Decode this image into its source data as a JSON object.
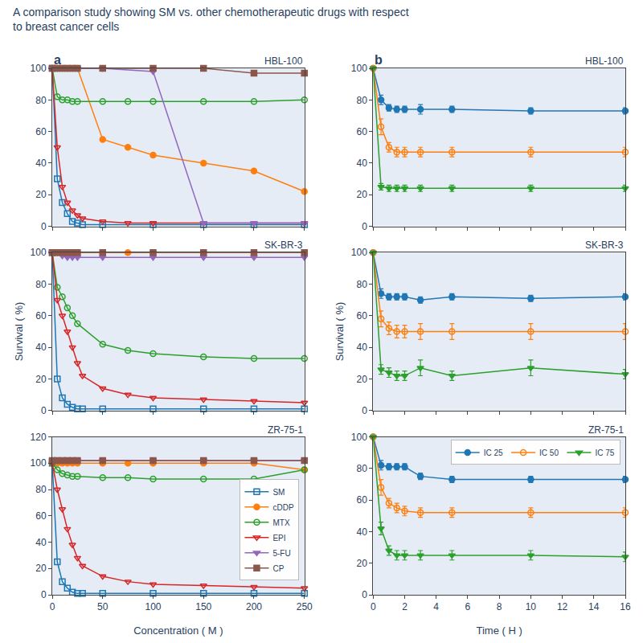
{
  "title": "A comparison study showing SM vs. other chemotherapeutic drugs with respect\nto breast cancer cells",
  "chart_data": [
    {
      "type": "line",
      "title": "a",
      "annotations": [
        "HBL-100"
      ],
      "xlim": [
        0,
        250
      ],
      "xticks": [
        0,
        50,
        100,
        150,
        200,
        250
      ],
      "ylim": [
        0,
        100
      ],
      "yticks": [
        0,
        20,
        40,
        60,
        80,
        100
      ],
      "grid": false,
      "tick_labels": "y",
      "series": [
        {
          "name": "SM",
          "marker": "square-open",
          "x": [
            0,
            5,
            10,
            15,
            20,
            25,
            30,
            50,
            100,
            150,
            200,
            250
          ],
          "values": [
            100,
            30,
            15,
            8,
            3,
            2,
            1,
            1,
            1,
            1,
            1,
            1
          ]
        },
        {
          "name": "cDDP",
          "marker": "circle",
          "x": [
            0,
            5,
            10,
            15,
            20,
            25,
            50,
            75,
            100,
            150,
            200,
            250
          ],
          "values": [
            100,
            100,
            100,
            100,
            100,
            100,
            55,
            50,
            45,
            40,
            35,
            22
          ]
        },
        {
          "name": "MTX",
          "marker": "circle-open",
          "x": [
            0,
            5,
            10,
            15,
            20,
            25,
            50,
            75,
            100,
            150,
            200,
            250
          ],
          "values": [
            100,
            82,
            80,
            80,
            79,
            79,
            79,
            79,
            79,
            79,
            79,
            80
          ]
        },
        {
          "name": "EPI",
          "marker": "triangle-down-open",
          "x": [
            0,
            5,
            10,
            15,
            20,
            25,
            30,
            50,
            75,
            100,
            150,
            200,
            250
          ],
          "values": [
            100,
            50,
            25,
            15,
            10,
            7,
            5,
            3,
            2,
            2,
            2,
            2,
            2
          ]
        },
        {
          "name": "5-FU",
          "marker": "triangle-down",
          "x": [
            0,
            5,
            10,
            15,
            20,
            25,
            50,
            100,
            150,
            200,
            250
          ],
          "values": [
            100,
            100,
            100,
            100,
            100,
            100,
            100,
            98,
            2,
            2,
            2
          ]
        },
        {
          "name": "CP",
          "marker": "square",
          "x": [
            0,
            5,
            10,
            15,
            20,
            25,
            50,
            100,
            150,
            200,
            250
          ],
          "values": [
            100,
            100,
            100,
            100,
            100,
            100,
            100,
            100,
            100,
            97,
            97
          ]
        }
      ]
    },
    {
      "type": "line",
      "annotations": [
        "SK-BR-3"
      ],
      "ylabel": "Survival ( %)",
      "xlim": [
        0,
        250
      ],
      "xticks": [
        0,
        50,
        100,
        150,
        200,
        250
      ],
      "ylim": [
        0,
        100
      ],
      "yticks": [
        0,
        20,
        40,
        60,
        80,
        100
      ],
      "grid": false,
      "tick_labels": "y",
      "series": [
        {
          "name": "SM",
          "marker": "square-open",
          "x": [
            0,
            5,
            10,
            15,
            20,
            25,
            30,
            50,
            100,
            150,
            200,
            250
          ],
          "values": [
            100,
            20,
            8,
            4,
            2,
            1,
            1,
            1,
            1,
            1,
            1,
            1
          ]
        },
        {
          "name": "cDDP",
          "marker": "circle",
          "x": [
            0,
            5,
            10,
            15,
            20,
            25,
            50,
            75,
            100,
            150,
            200,
            250
          ],
          "values": [
            100,
            100,
            100,
            100,
            100,
            100,
            100,
            100,
            100,
            100,
            100,
            100
          ]
        },
        {
          "name": "MTX",
          "marker": "circle-open",
          "x": [
            0,
            5,
            10,
            15,
            20,
            25,
            50,
            75,
            100,
            150,
            200,
            250
          ],
          "values": [
            100,
            78,
            72,
            65,
            60,
            55,
            42,
            38,
            36,
            34,
            33,
            33
          ]
        },
        {
          "name": "EPI",
          "marker": "triangle-down-open",
          "x": [
            0,
            5,
            10,
            15,
            20,
            25,
            30,
            50,
            75,
            100,
            150,
            200,
            250
          ],
          "values": [
            100,
            70,
            60,
            50,
            40,
            30,
            22,
            14,
            10,
            8,
            7,
            6,
            5
          ]
        },
        {
          "name": "5-FU",
          "marker": "triangle-down",
          "x": [
            0,
            5,
            10,
            15,
            20,
            25,
            50,
            100,
            150,
            200,
            250
          ],
          "values": [
            100,
            100,
            98,
            97,
            97,
            97,
            97,
            97,
            97,
            97,
            97
          ]
        },
        {
          "name": "CP",
          "marker": "square",
          "x": [
            0,
            5,
            10,
            15,
            20,
            25,
            50,
            100,
            150,
            200,
            250
          ],
          "values": [
            100,
            100,
            100,
            100,
            100,
            100,
            100,
            100,
            100,
            100,
            100
          ]
        }
      ]
    },
    {
      "type": "line",
      "annotations": [
        "ZR-75-1"
      ],
      "xlabel": "Concentration ( M )",
      "xlim": [
        0,
        250
      ],
      "xticks": [
        0,
        50,
        100,
        150,
        200,
        250
      ],
      "ylim": [
        0,
        120
      ],
      "yticks": [
        0,
        20,
        40,
        60,
        80,
        100,
        120
      ],
      "grid": false,
      "legend": "lower right",
      "series": [
        {
          "name": "SM",
          "marker": "square-open",
          "x": [
            0,
            5,
            10,
            15,
            20,
            25,
            30,
            50,
            100,
            150,
            200,
            250
          ],
          "values": [
            100,
            25,
            10,
            5,
            2,
            1,
            1,
            1,
            1,
            1,
            1,
            1
          ]
        },
        {
          "name": "cDDP",
          "marker": "circle",
          "x": [
            0,
            5,
            10,
            15,
            20,
            25,
            50,
            75,
            100,
            150,
            200,
            250
          ],
          "values": [
            100,
            100,
            100,
            100,
            100,
            100,
            100,
            100,
            100,
            100,
            100,
            95
          ]
        },
        {
          "name": "MTX",
          "marker": "circle-open",
          "x": [
            0,
            5,
            10,
            15,
            20,
            25,
            50,
            75,
            100,
            150,
            200,
            250
          ],
          "values": [
            100,
            95,
            92,
            91,
            90,
            90,
            89,
            89,
            88,
            88,
            88,
            95
          ]
        },
        {
          "name": "EPI",
          "marker": "triangle-down-open",
          "x": [
            0,
            5,
            10,
            15,
            20,
            25,
            30,
            50,
            75,
            100,
            150,
            200,
            250
          ],
          "values": [
            100,
            80,
            65,
            50,
            38,
            28,
            22,
            14,
            10,
            8,
            7,
            6,
            5
          ]
        },
        {
          "name": "5-FU",
          "marker": "triangle-down",
          "x": [
            0,
            5,
            10,
            15,
            20,
            25,
            50,
            100,
            150,
            200,
            250
          ],
          "values": [
            102,
            102,
            102,
            102,
            102,
            102,
            102,
            102,
            102,
            102,
            102
          ]
        },
        {
          "name": "CP",
          "marker": "square",
          "x": [
            0,
            5,
            10,
            15,
            20,
            25,
            50,
            100,
            150,
            200,
            250
          ],
          "values": [
            102,
            102,
            102,
            102,
            102,
            102,
            102,
            102,
            102,
            102,
            102
          ]
        }
      ]
    },
    {
      "type": "line",
      "title": "b",
      "annotations": [
        "HBL-100"
      ],
      "xlim": [
        0,
        16
      ],
      "xticks": [
        0,
        2,
        4,
        6,
        8,
        10,
        12,
        14,
        16
      ],
      "ylim": [
        0,
        100
      ],
      "yticks": [
        0,
        20,
        40,
        60,
        80,
        100
      ],
      "grid": false,
      "tick_labels": "y",
      "series": [
        {
          "name": "IC 25",
          "marker": "circle",
          "x": [
            0,
            0.5,
            1,
            1.5,
            2,
            3,
            5,
            10,
            16
          ],
          "values": [
            100,
            80,
            75,
            74,
            74,
            74,
            74,
            73,
            73
          ],
          "error": [
            0,
            3,
            2,
            2,
            2,
            3,
            2,
            2,
            2
          ]
        },
        {
          "name": "IC 50",
          "marker": "circle-open",
          "x": [
            0,
            0.5,
            1,
            1.5,
            2,
            3,
            5,
            10,
            16
          ],
          "values": [
            100,
            63,
            50,
            47,
            47,
            47,
            47,
            47,
            47
          ],
          "error": [
            0,
            5,
            3,
            3,
            3,
            3,
            3,
            3,
            3
          ]
        },
        {
          "name": "IC 75",
          "marker": "triangle-down",
          "x": [
            0,
            0.5,
            1,
            1.5,
            2,
            3,
            5,
            10,
            16
          ],
          "values": [
            100,
            25,
            24,
            24,
            24,
            24,
            24,
            24,
            24
          ],
          "error": [
            0,
            2,
            2,
            2,
            2,
            2,
            2,
            2,
            2
          ]
        }
      ]
    },
    {
      "type": "line",
      "annotations": [
        "SK-BR-3"
      ],
      "ylabel": "Survival ( %)",
      "xlim": [
        0,
        16
      ],
      "xticks": [
        0,
        2,
        4,
        6,
        8,
        10,
        12,
        14,
        16
      ],
      "ylim": [
        0,
        100
      ],
      "yticks": [
        0,
        20,
        40,
        60,
        80,
        100
      ],
      "grid": false,
      "tick_labels": "y",
      "series": [
        {
          "name": "IC 25",
          "marker": "circle",
          "x": [
            0,
            0.5,
            1,
            1.5,
            2,
            3,
            5,
            10,
            16
          ],
          "values": [
            100,
            74,
            72,
            72,
            72,
            70,
            72,
            71,
            72
          ],
          "error": [
            0,
            3,
            2,
            2,
            2,
            2,
            2,
            2,
            2
          ]
        },
        {
          "name": "IC 50",
          "marker": "circle-open",
          "x": [
            0,
            0.5,
            1,
            1.5,
            2,
            3,
            5,
            10,
            16
          ],
          "values": [
            100,
            58,
            52,
            50,
            50,
            50,
            50,
            50,
            50
          ],
          "error": [
            0,
            5,
            4,
            4,
            4,
            5,
            5,
            5,
            5
          ]
        },
        {
          "name": "IC 75",
          "marker": "triangle-down",
          "x": [
            0,
            0.5,
            1,
            1.5,
            2,
            3,
            5,
            10,
            16
          ],
          "values": [
            100,
            26,
            24,
            22,
            22,
            27,
            22,
            27,
            23
          ],
          "error": [
            0,
            3,
            3,
            3,
            3,
            5,
            3,
            5,
            3
          ]
        }
      ]
    },
    {
      "type": "line",
      "annotations": [
        "ZR-75-1"
      ],
      "xlabel": "Time ( H )",
      "xlim": [
        0,
        16
      ],
      "xticks": [
        0,
        2,
        4,
        6,
        8,
        10,
        12,
        14,
        16
      ],
      "ylim": [
        0,
        100
      ],
      "yticks": [
        0,
        20,
        40,
        60,
        80,
        100
      ],
      "grid": false,
      "legend": "upper right",
      "series": [
        {
          "name": "IC 25",
          "marker": "circle",
          "x": [
            0,
            0.5,
            1,
            1.5,
            2,
            3,
            5,
            10,
            16
          ],
          "values": [
            100,
            82,
            81,
            81,
            81,
            75,
            73,
            73,
            73
          ],
          "error": [
            0,
            3,
            2,
            2,
            2,
            2,
            2,
            2,
            2
          ]
        },
        {
          "name": "IC 50",
          "marker": "circle-open",
          "x": [
            0,
            0.5,
            1,
            1.5,
            2,
            3,
            5,
            10,
            16
          ],
          "values": [
            100,
            68,
            58,
            55,
            53,
            52,
            52,
            52,
            52
          ],
          "error": [
            0,
            5,
            3,
            3,
            3,
            3,
            3,
            3,
            3
          ]
        },
        {
          "name": "IC 75",
          "marker": "triangle-down",
          "x": [
            0,
            0.5,
            1,
            1.5,
            2,
            3,
            5,
            10,
            16
          ],
          "values": [
            100,
            42,
            28,
            25,
            25,
            25,
            25,
            25,
            24
          ],
          "error": [
            0,
            4,
            3,
            3,
            3,
            3,
            3,
            3,
            3
          ]
        }
      ]
    }
  ]
}
